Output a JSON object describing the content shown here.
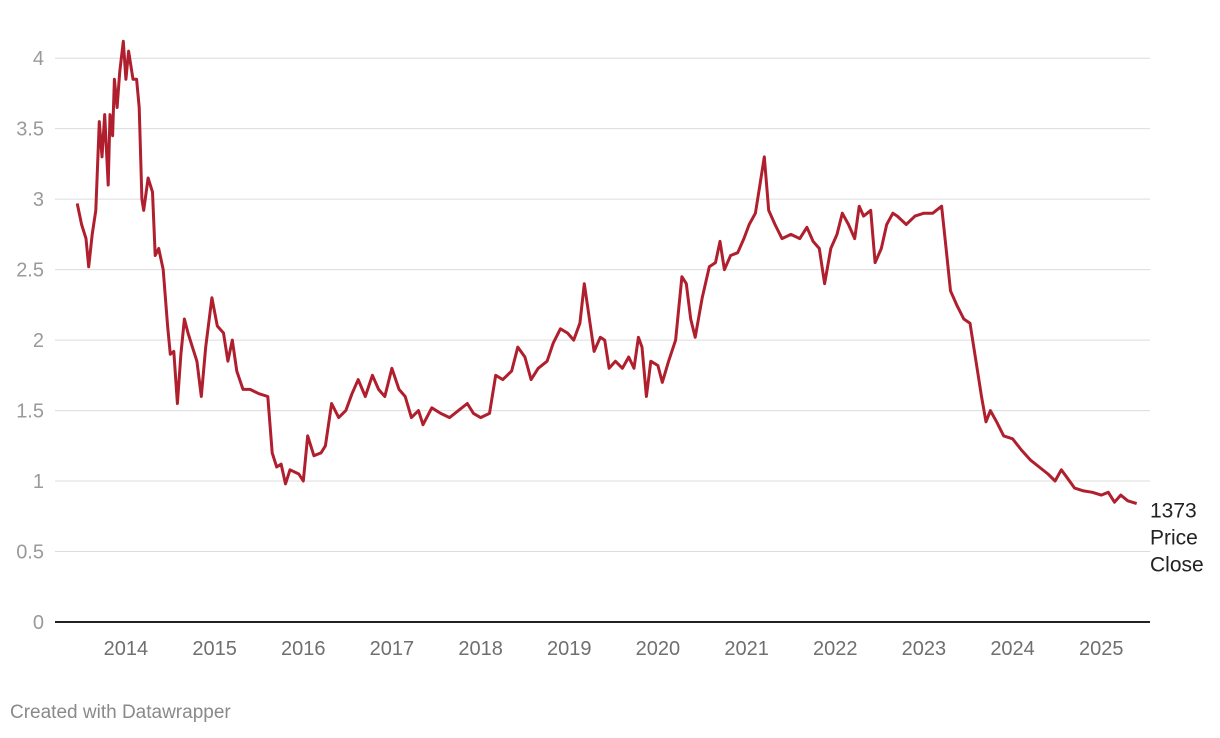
{
  "chart_data": {
    "type": "line",
    "title": "",
    "xlabel": "",
    "ylabel": "",
    "ylim": [
      0,
      4.2
    ],
    "yticks": [
      "0",
      "0.5",
      "1",
      "1.5",
      "2",
      "2.5",
      "3",
      "3.5",
      "4"
    ],
    "xticks": [
      "2014",
      "2015",
      "2016",
      "2017",
      "2018",
      "2019",
      "2020",
      "2021",
      "2022",
      "2023",
      "2024",
      "2025"
    ],
    "grid": true,
    "line_color": "#b01f2e",
    "end_label": [
      "1373",
      "Price",
      "Close"
    ],
    "series": [
      {
        "points": [
          [
            2013.75,
            2.97
          ],
          [
            2013.8,
            2.82
          ],
          [
            2013.85,
            2.72
          ],
          [
            2013.88,
            2.52
          ],
          [
            2013.92,
            2.75
          ],
          [
            2013.96,
            2.92
          ],
          [
            2014.0,
            3.55
          ],
          [
            2014.03,
            3.3
          ],
          [
            2014.06,
            3.6
          ],
          [
            2014.1,
            3.1
          ],
          [
            2014.12,
            3.6
          ],
          [
            2014.15,
            3.45
          ],
          [
            2014.17,
            3.85
          ],
          [
            2014.2,
            3.65
          ],
          [
            2014.23,
            3.9
          ],
          [
            2014.27,
            4.12
          ],
          [
            2014.3,
            3.85
          ],
          [
            2014.33,
            4.05
          ],
          [
            2014.38,
            3.85
          ],
          [
            2014.42,
            3.85
          ],
          [
            2014.45,
            3.65
          ],
          [
            2014.48,
            3.0
          ],
          [
            2014.5,
            2.92
          ],
          [
            2014.55,
            3.15
          ],
          [
            2014.6,
            3.05
          ],
          [
            2014.63,
            2.6
          ],
          [
            2014.67,
            2.65
          ],
          [
            2014.72,
            2.5
          ],
          [
            2014.77,
            2.1
          ],
          [
            2014.8,
            1.9
          ],
          [
            2014.84,
            1.92
          ],
          [
            2014.88,
            1.55
          ],
          [
            2014.92,
            1.9
          ],
          [
            2014.96,
            2.15
          ],
          [
            2015.0,
            2.05
          ],
          [
            2015.05,
            1.95
          ],
          [
            2015.1,
            1.85
          ],
          [
            2015.15,
            1.6
          ],
          [
            2015.2,
            1.95
          ],
          [
            2015.27,
            2.3
          ],
          [
            2015.33,
            2.1
          ],
          [
            2015.4,
            2.05
          ],
          [
            2015.45,
            1.85
          ],
          [
            2015.5,
            2.0
          ],
          [
            2015.55,
            1.78
          ],
          [
            2015.62,
            1.65
          ],
          [
            2015.7,
            1.65
          ],
          [
            2015.8,
            1.62
          ],
          [
            2015.9,
            1.6
          ],
          [
            2015.95,
            1.2
          ],
          [
            2016.0,
            1.1
          ],
          [
            2016.05,
            1.12
          ],
          [
            2016.1,
            0.98
          ],
          [
            2016.15,
            1.08
          ],
          [
            2016.25,
            1.05
          ],
          [
            2016.3,
            1.0
          ],
          [
            2016.35,
            1.32
          ],
          [
            2016.42,
            1.18
          ],
          [
            2016.5,
            1.2
          ],
          [
            2016.55,
            1.25
          ],
          [
            2016.62,
            1.55
          ],
          [
            2016.7,
            1.45
          ],
          [
            2016.78,
            1.5
          ],
          [
            2016.85,
            1.62
          ],
          [
            2016.92,
            1.72
          ],
          [
            2017.0,
            1.6
          ],
          [
            2017.08,
            1.75
          ],
          [
            2017.15,
            1.65
          ],
          [
            2017.22,
            1.6
          ],
          [
            2017.3,
            1.8
          ],
          [
            2017.38,
            1.65
          ],
          [
            2017.45,
            1.6
          ],
          [
            2017.52,
            1.45
          ],
          [
            2017.6,
            1.5
          ],
          [
            2017.65,
            1.4
          ],
          [
            2017.75,
            1.52
          ],
          [
            2017.85,
            1.48
          ],
          [
            2017.95,
            1.45
          ],
          [
            2018.05,
            1.5
          ],
          [
            2018.15,
            1.55
          ],
          [
            2018.22,
            1.48
          ],
          [
            2018.3,
            1.45
          ],
          [
            2018.4,
            1.48
          ],
          [
            2018.47,
            1.75
          ],
          [
            2018.55,
            1.72
          ],
          [
            2018.65,
            1.78
          ],
          [
            2018.72,
            1.95
          ],
          [
            2018.8,
            1.88
          ],
          [
            2018.87,
            1.72
          ],
          [
            2018.95,
            1.8
          ],
          [
            2019.05,
            1.85
          ],
          [
            2019.12,
            1.98
          ],
          [
            2019.2,
            2.08
          ],
          [
            2019.28,
            2.05
          ],
          [
            2019.35,
            2.0
          ],
          [
            2019.42,
            2.12
          ],
          [
            2019.47,
            2.4
          ],
          [
            2019.52,
            2.18
          ],
          [
            2019.58,
            1.92
          ],
          [
            2019.65,
            2.02
          ],
          [
            2019.7,
            2.0
          ],
          [
            2019.75,
            1.8
          ],
          [
            2019.82,
            1.85
          ],
          [
            2019.9,
            1.8
          ],
          [
            2019.97,
            1.88
          ],
          [
            2020.03,
            1.8
          ],
          [
            2020.08,
            2.02
          ],
          [
            2020.12,
            1.95
          ],
          [
            2020.17,
            1.6
          ],
          [
            2020.22,
            1.85
          ],
          [
            2020.3,
            1.82
          ],
          [
            2020.35,
            1.7
          ],
          [
            2020.42,
            1.85
          ],
          [
            2020.5,
            2.0
          ],
          [
            2020.57,
            2.45
          ],
          [
            2020.62,
            2.4
          ],
          [
            2020.67,
            2.15
          ],
          [
            2020.72,
            2.02
          ],
          [
            2020.8,
            2.3
          ],
          [
            2020.88,
            2.52
          ],
          [
            2020.95,
            2.55
          ],
          [
            2021.0,
            2.7
          ],
          [
            2021.05,
            2.5
          ],
          [
            2021.12,
            2.6
          ],
          [
            2021.2,
            2.62
          ],
          [
            2021.27,
            2.72
          ],
          [
            2021.33,
            2.82
          ],
          [
            2021.4,
            2.9
          ],
          [
            2021.45,
            3.1
          ],
          [
            2021.5,
            3.3
          ],
          [
            2021.55,
            2.92
          ],
          [
            2021.62,
            2.82
          ],
          [
            2021.7,
            2.72
          ],
          [
            2021.8,
            2.75
          ],
          [
            2021.9,
            2.72
          ],
          [
            2021.98,
            2.8
          ],
          [
            2022.05,
            2.7
          ],
          [
            2022.12,
            2.65
          ],
          [
            2022.18,
            2.4
          ],
          [
            2022.25,
            2.65
          ],
          [
            2022.32,
            2.75
          ],
          [
            2022.38,
            2.9
          ],
          [
            2022.45,
            2.82
          ],
          [
            2022.52,
            2.72
          ],
          [
            2022.57,
            2.95
          ],
          [
            2022.62,
            2.88
          ],
          [
            2022.7,
            2.92
          ],
          [
            2022.75,
            2.55
          ],
          [
            2022.82,
            2.65
          ],
          [
            2022.88,
            2.82
          ],
          [
            2022.95,
            2.9
          ],
          [
            2023.0,
            2.88
          ],
          [
            2023.1,
            2.82
          ],
          [
            2023.2,
            2.88
          ],
          [
            2023.3,
            2.9
          ],
          [
            2023.4,
            2.9
          ],
          [
            2023.5,
            2.95
          ],
          [
            2023.55,
            2.65
          ],
          [
            2023.6,
            2.35
          ],
          [
            2023.67,
            2.25
          ],
          [
            2023.75,
            2.15
          ],
          [
            2023.82,
            2.12
          ],
          [
            2023.9,
            1.8
          ],
          [
            2023.95,
            1.6
          ],
          [
            2024.0,
            1.42
          ],
          [
            2024.05,
            1.5
          ],
          [
            2024.12,
            1.42
          ],
          [
            2024.2,
            1.32
          ],
          [
            2024.3,
            1.3
          ],
          [
            2024.4,
            1.22
          ],
          [
            2024.5,
            1.15
          ],
          [
            2024.6,
            1.1
          ],
          [
            2024.7,
            1.05
          ],
          [
            2024.78,
            1.0
          ],
          [
            2024.85,
            1.08
          ],
          [
            2024.92,
            1.02
          ],
          [
            2025.0,
            0.95
          ],
          [
            2025.1,
            0.93
          ],
          [
            2025.2,
            0.92
          ],
          [
            2025.3,
            0.9
          ],
          [
            2025.38,
            0.92
          ],
          [
            2025.45,
            0.85
          ],
          [
            2025.52,
            0.9
          ],
          [
            2025.6,
            0.86
          ],
          [
            2025.7,
            0.84
          ]
        ]
      }
    ]
  },
  "footer": {
    "credit": "Created with Datawrapper"
  }
}
